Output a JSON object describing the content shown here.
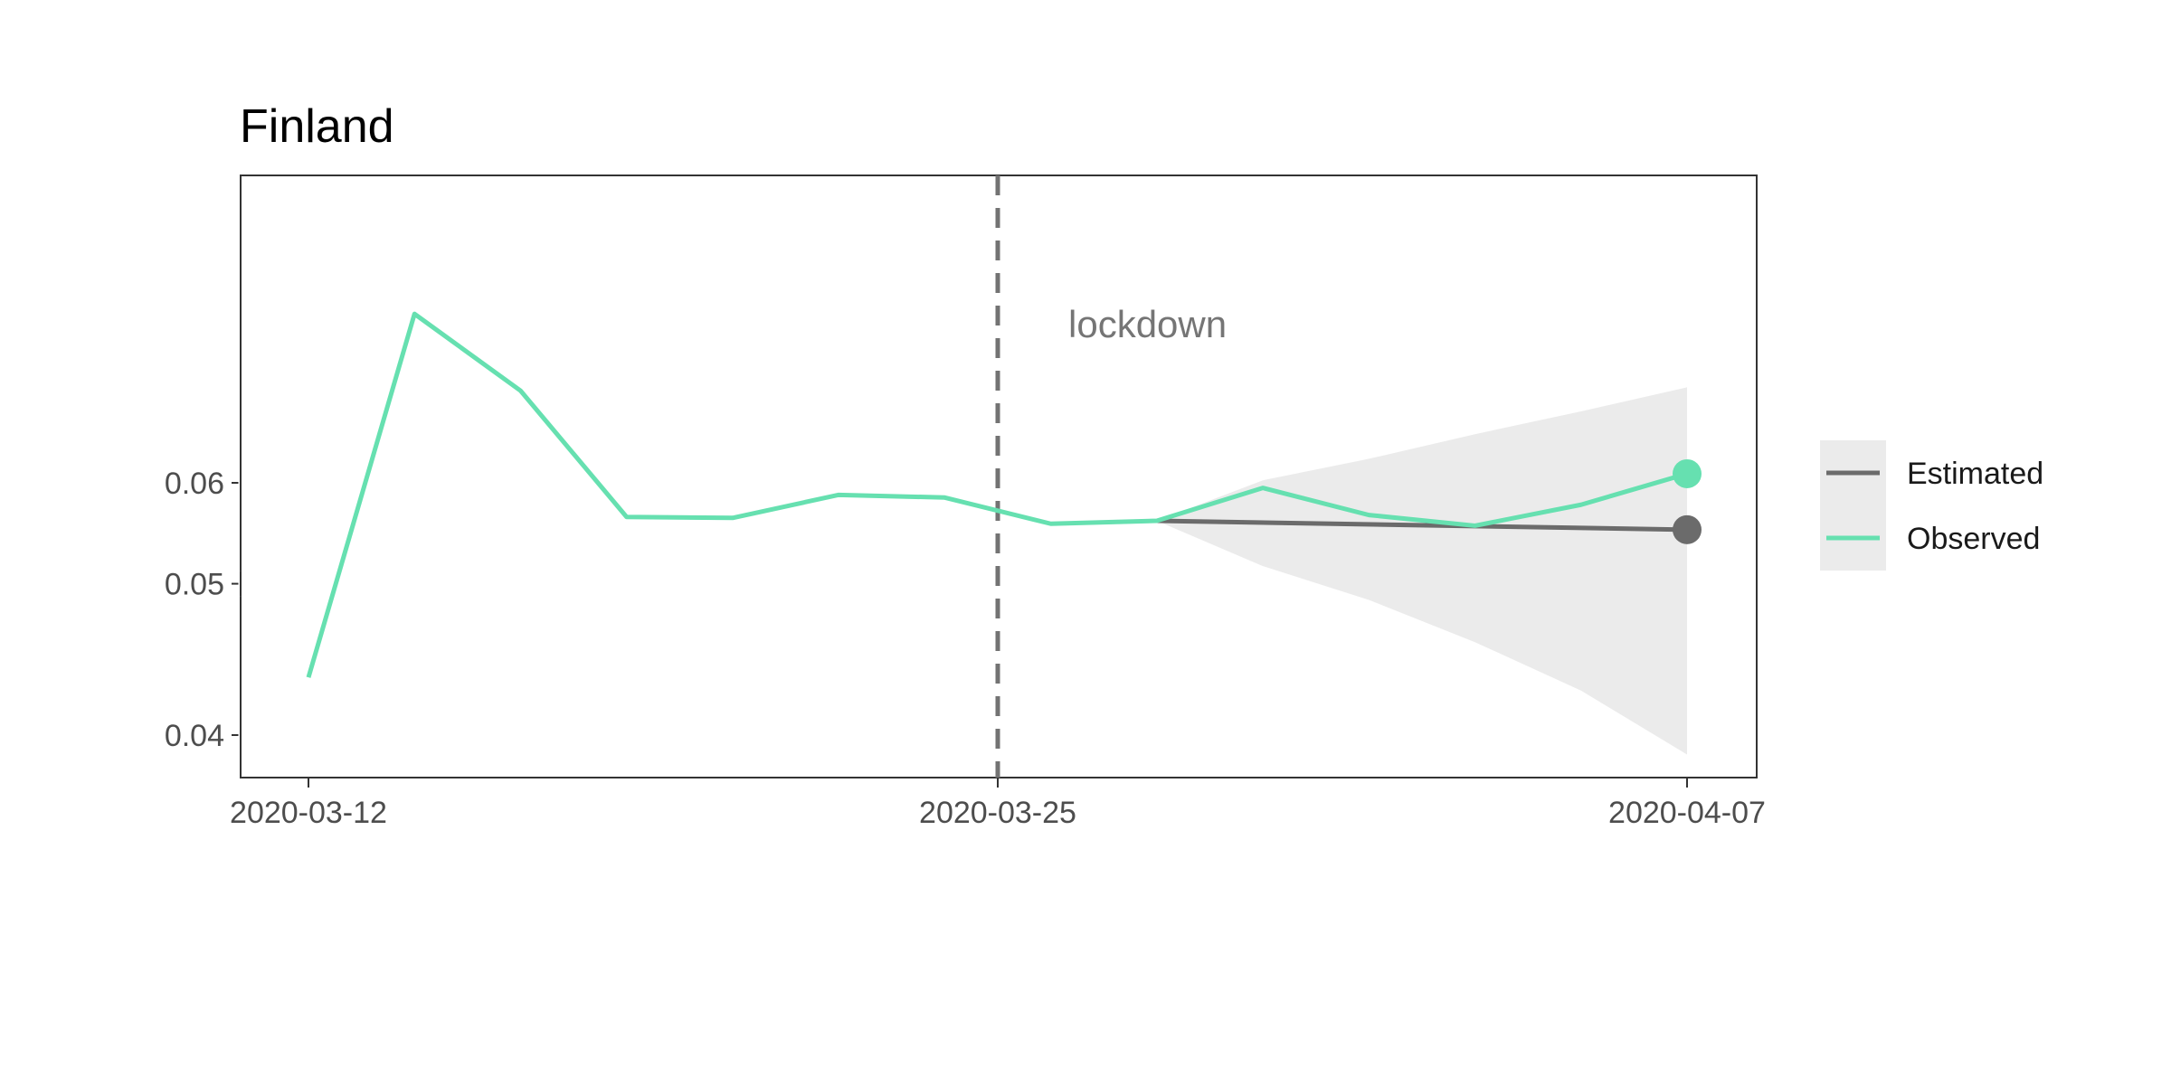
{
  "chart_data": {
    "type": "line",
    "title": "Finland",
    "xlabel": "",
    "ylabel": "",
    "x_ticks": [
      "2020-03-12",
      "2020-03-25",
      "2020-04-07"
    ],
    "y_ticks": [
      0.04,
      0.05,
      0.06
    ],
    "y_tick_labels": [
      "0.04",
      "0.05",
      "0.06"
    ],
    "ylim": [
      0.0385,
      0.0925
    ],
    "xlim": [
      "2020-03-10",
      "2020-04-08"
    ],
    "grid": false,
    "legend_position": "right",
    "annotations": [
      {
        "text": "lockdown",
        "x": "2020-03-25",
        "type": "vline",
        "style": "dashed",
        "color": "#737373"
      }
    ],
    "series": [
      {
        "name": "Observed",
        "color": "#66E0B0",
        "points": [
          [
            "2020-03-12",
            0.0433
          ],
          [
            "2020-03-14",
            0.0902
          ],
          [
            "2020-03-16",
            0.0734
          ],
          [
            "2020-03-18",
            0.0562
          ],
          [
            "2020-03-20",
            0.0561
          ],
          [
            "2020-03-22",
            0.0586
          ],
          [
            "2020-03-24",
            0.0583
          ],
          [
            "2020-03-26",
            0.0555
          ],
          [
            "2020-03-28",
            0.0558
          ],
          [
            "2020-03-30",
            0.0594
          ],
          [
            "2020-04-01",
            0.0564
          ],
          [
            "2020-04-03",
            0.0553
          ],
          [
            "2020-04-05",
            0.0575
          ],
          [
            "2020-04-07",
            0.0611
          ]
        ]
      },
      {
        "name": "Estimated",
        "color": "#6B6B6B",
        "points": [
          [
            "2020-03-28",
            0.0558
          ],
          [
            "2020-04-07",
            0.0549
          ]
        ],
        "ribbon": [
          [
            "2020-03-28",
            0.0558,
            0.0558
          ],
          [
            "2020-03-30",
            0.0515,
            0.0603
          ],
          [
            "2020-04-01",
            0.0487,
            0.063
          ],
          [
            "2020-04-03",
            0.0456,
            0.0664
          ],
          [
            "2020-04-05",
            0.0425,
            0.0699
          ],
          [
            "2020-04-07",
            0.039,
            0.074
          ]
        ],
        "ribbon_color": "#EBEBEB"
      }
    ]
  }
}
